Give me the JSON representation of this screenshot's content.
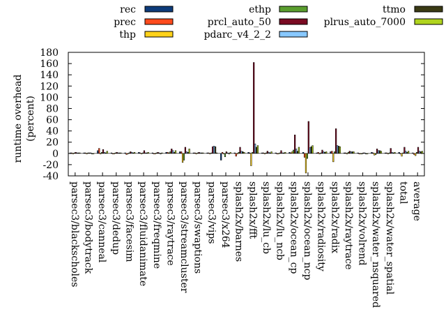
{
  "chart_data": {
    "type": "bar",
    "title": "",
    "xlabel": "",
    "ylabel": "runtime overhead",
    "ylabel_unit": "(percent)",
    "ylim": [
      -40,
      180
    ],
    "yticks": [
      -40,
      -20,
      0,
      20,
      40,
      60,
      80,
      100,
      120,
      140,
      160,
      180
    ],
    "grid": false,
    "legend_position": "top",
    "categories": [
      "parsec3/blackscholes",
      "parsec3/bodytrack",
      "parsec3/canneal",
      "parsec3/dedup",
      "parsec3/facesim",
      "parsec3/fluidanimate",
      "parsec3/freqmine",
      "parsec3/raytrace",
      "parsec3/streamcluster",
      "parsec3/swaptions",
      "parsec3/vips",
      "parsec3/x264",
      "splash2x/barnes",
      "splash2x/fft",
      "splash2x/lu_cb",
      "splash2x/lu_ncb",
      "splash2x/ocean_cp",
      "splash2x/ocean_ncp",
      "splash2x/radiosity",
      "splash2x/radix",
      "splash2x/raytrace",
      "splash2x/volrend",
      "splash2x/water_nsquared",
      "splash2x/water_spatial",
      "total",
      "average"
    ],
    "series": [
      {
        "name": "rec",
        "color": "#0d3b7a",
        "values": [
          1,
          1,
          5,
          1,
          1,
          2,
          1,
          2,
          3,
          1,
          1,
          -12,
          1,
          2,
          1,
          1,
          2,
          2,
          1,
          3,
          1,
          1,
          2,
          1,
          2,
          1
        ]
      },
      {
        "name": "prec",
        "color": "#ff4a1c",
        "values": [
          1,
          1,
          9,
          0,
          -2,
          1,
          0,
          2,
          3,
          1,
          1,
          2,
          -5,
          1,
          1,
          0,
          1,
          -7,
          2,
          4,
          1,
          0,
          1,
          1,
          0,
          -2
        ]
      },
      {
        "name": "thp",
        "color": "#ffd21a",
        "values": [
          0,
          0,
          -1,
          0,
          0,
          -1,
          0,
          1,
          -16,
          0,
          0,
          0,
          0,
          -22,
          0,
          -1,
          3,
          -35,
          0,
          -15,
          0,
          0,
          -3,
          0,
          -5,
          -4
        ]
      },
      {
        "name": "ethp",
        "color": "#5a9e2e",
        "values": [
          1,
          1,
          2,
          1,
          1,
          1,
          1,
          3,
          -12,
          1,
          1,
          -6,
          2,
          2,
          1,
          1,
          6,
          -9,
          1,
          3,
          2,
          0,
          -2,
          1,
          1,
          2
        ]
      },
      {
        "name": "prcl_auto_50",
        "color": "#7a0a22",
        "values": [
          2,
          1,
          7,
          2,
          3,
          5,
          2,
          8,
          11,
          2,
          12,
          3,
          11,
          162,
          4,
          5,
          33,
          57,
          6,
          44,
          4,
          1,
          8,
          9,
          11,
          11
        ]
      },
      {
        "name": "pdarc_v4_2_2",
        "color": "#88c8ff",
        "values": [
          1,
          1,
          2,
          1,
          2,
          1,
          1,
          5,
          3,
          1,
          13,
          1,
          4,
          17,
          2,
          1,
          8,
          10,
          3,
          14,
          3,
          1,
          5,
          2,
          4,
          4
        ]
      },
      {
        "name": "ttmo",
        "color": "#3a3a14",
        "values": [
          1,
          0,
          1,
          1,
          1,
          1,
          0,
          2,
          2,
          1,
          12,
          0,
          3,
          11,
          1,
          1,
          4,
          12,
          2,
          13,
          3,
          0,
          5,
          1,
          2,
          3
        ]
      },
      {
        "name": "plrus_auto_7000",
        "color": "#b0d41e",
        "values": [
          1,
          0,
          4,
          1,
          2,
          2,
          1,
          5,
          8,
          1,
          1,
          2,
          2,
          14,
          3,
          2,
          11,
          14,
          3,
          12,
          3,
          0,
          4,
          2,
          4,
          4
        ]
      }
    ]
  }
}
